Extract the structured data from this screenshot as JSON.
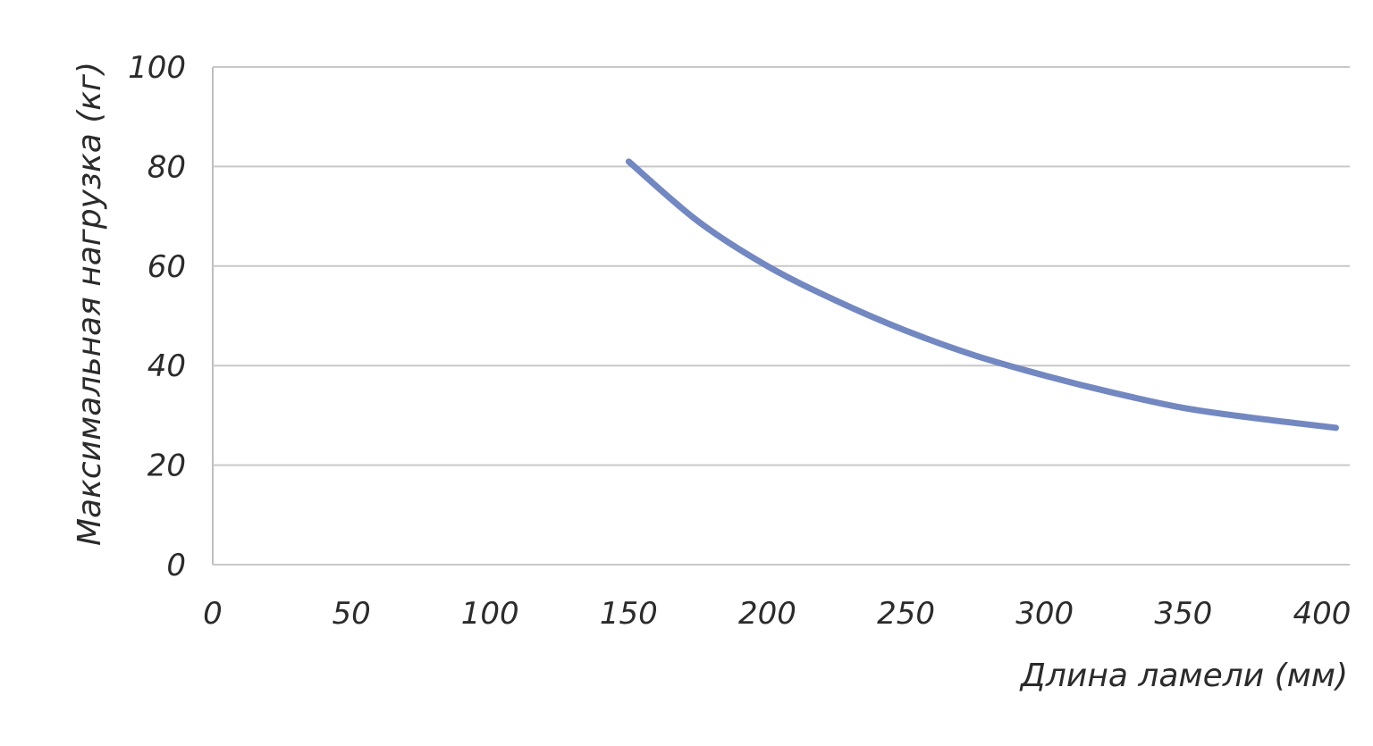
{
  "chart_data": {
    "type": "line",
    "title": "",
    "xlabel": "Длина ламели (мм)",
    "ylabel": "Максимальная нагрузка (кг)",
    "xlim": [
      0,
      410
    ],
    "ylim": [
      0,
      100
    ],
    "x_ticks": [
      "0",
      "50",
      "100",
      "150",
      "200",
      "250",
      "300",
      "350",
      "400"
    ],
    "y_ticks": [
      "0",
      "20",
      "40",
      "60",
      "80",
      "100"
    ],
    "grid": true,
    "legend": "none",
    "series": [
      {
        "color": "#7388c1",
        "x": [
          150,
          175,
          200,
          225,
          250,
          275,
          300,
          325,
          350,
          375,
          405
        ],
        "y": [
          81,
          69,
          60,
          53,
          47,
          42,
          38,
          34.5,
          31.5,
          29.5,
          27.5
        ]
      }
    ]
  }
}
